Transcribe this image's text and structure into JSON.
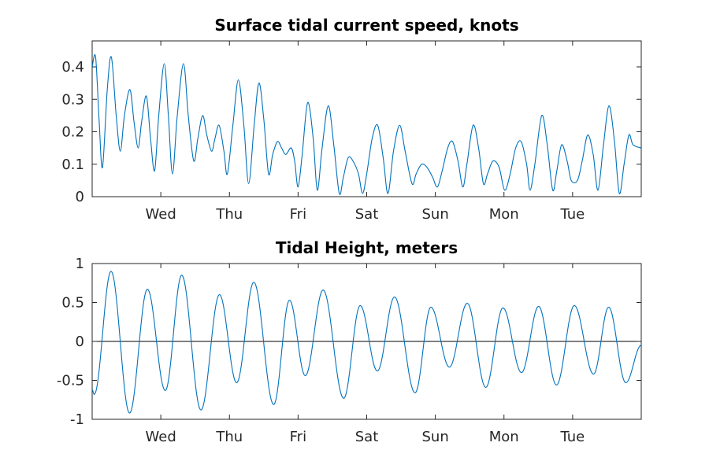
{
  "chart_data": [
    {
      "type": "line",
      "title": "Surface tidal current speed, knots",
      "x_tick_labels": [
        "Wed",
        "Thu",
        "Fri",
        "Sat",
        "Sun",
        "Mon",
        "Tue"
      ],
      "x_tick_positions_days": [
        1,
        2,
        3,
        4,
        5,
        6,
        7
      ],
      "xlim_days": [
        0,
        8
      ],
      "ylim": [
        0,
        0.48
      ],
      "y_ticks": [
        0,
        0.1,
        0.2,
        0.3,
        0.4
      ],
      "y_tick_labels": [
        "0",
        "0.1",
        "0.2",
        "0.3",
        "0.4"
      ],
      "grid": false,
      "series": [
        {
          "color": "#0072bd",
          "points_day_value": [
            [
              0.0,
              0.4
            ],
            [
              0.05,
              0.43
            ],
            [
              0.1,
              0.24
            ],
            [
              0.15,
              0.09
            ],
            [
              0.22,
              0.33
            ],
            [
              0.28,
              0.43
            ],
            [
              0.35,
              0.25
            ],
            [
              0.41,
              0.14
            ],
            [
              0.47,
              0.25
            ],
            [
              0.55,
              0.33
            ],
            [
              0.61,
              0.23
            ],
            [
              0.67,
              0.15
            ],
            [
              0.72,
              0.23
            ],
            [
              0.79,
              0.31
            ],
            [
              0.85,
              0.18
            ],
            [
              0.91,
              0.08
            ],
            [
              0.97,
              0.25
            ],
            [
              1.05,
              0.41
            ],
            [
              1.11,
              0.25
            ],
            [
              1.17,
              0.07
            ],
            [
              1.24,
              0.25
            ],
            [
              1.33,
              0.41
            ],
            [
              1.4,
              0.25
            ],
            [
              1.48,
              0.11
            ],
            [
              1.54,
              0.18
            ],
            [
              1.61,
              0.25
            ],
            [
              1.67,
              0.19
            ],
            [
              1.74,
              0.14
            ],
            [
              1.79,
              0.18
            ],
            [
              1.85,
              0.22
            ],
            [
              1.92,
              0.14
            ],
            [
              1.97,
              0.07
            ],
            [
              2.05,
              0.22
            ],
            [
              2.13,
              0.36
            ],
            [
              2.21,
              0.22
            ],
            [
              2.28,
              0.04
            ],
            [
              2.36,
              0.22
            ],
            [
              2.43,
              0.35
            ],
            [
              2.5,
              0.24
            ],
            [
              2.57,
              0.07
            ],
            [
              2.63,
              0.13
            ],
            [
              2.7,
              0.17
            ],
            [
              2.76,
              0.15
            ],
            [
              2.82,
              0.13
            ],
            [
              2.9,
              0.15
            ],
            [
              2.95,
              0.11
            ],
            [
              3.0,
              0.03
            ],
            [
              3.06,
              0.13
            ],
            [
              3.14,
              0.29
            ],
            [
              3.22,
              0.18
            ],
            [
              3.28,
              0.02
            ],
            [
              3.35,
              0.15
            ],
            [
              3.44,
              0.28
            ],
            [
              3.52,
              0.16
            ],
            [
              3.6,
              0.01
            ],
            [
              3.66,
              0.06
            ],
            [
              3.73,
              0.12
            ],
            [
              3.8,
              0.11
            ],
            [
              3.88,
              0.07
            ],
            [
              3.94,
              0.01
            ],
            [
              4.0,
              0.07
            ],
            [
              4.08,
              0.18
            ],
            [
              4.16,
              0.22
            ],
            [
              4.24,
              0.12
            ],
            [
              4.31,
              0.01
            ],
            [
              4.39,
              0.14
            ],
            [
              4.48,
              0.22
            ],
            [
              4.56,
              0.14
            ],
            [
              4.66,
              0.04
            ],
            [
              4.72,
              0.07
            ],
            [
              4.8,
              0.1
            ],
            [
              4.88,
              0.09
            ],
            [
              4.96,
              0.06
            ],
            [
              5.03,
              0.03
            ],
            [
              5.1,
              0.08
            ],
            [
              5.18,
              0.15
            ],
            [
              5.25,
              0.17
            ],
            [
              5.33,
              0.11
            ],
            [
              5.4,
              0.03
            ],
            [
              5.46,
              0.1
            ],
            [
              5.55,
              0.22
            ],
            [
              5.63,
              0.15
            ],
            [
              5.7,
              0.04
            ],
            [
              5.76,
              0.07
            ],
            [
              5.84,
              0.11
            ],
            [
              5.93,
              0.09
            ],
            [
              6.01,
              0.02
            ],
            [
              6.09,
              0.07
            ],
            [
              6.17,
              0.15
            ],
            [
              6.25,
              0.17
            ],
            [
              6.33,
              0.1
            ],
            [
              6.38,
              0.02
            ],
            [
              6.45,
              0.1
            ],
            [
              6.55,
              0.25
            ],
            [
              6.63,
              0.16
            ],
            [
              6.71,
              0.02
            ],
            [
              6.77,
              0.08
            ],
            [
              6.84,
              0.16
            ],
            [
              6.92,
              0.11
            ],
            [
              6.98,
              0.05
            ],
            [
              7.07,
              0.05
            ],
            [
              7.14,
              0.11
            ],
            [
              7.22,
              0.19
            ],
            [
              7.3,
              0.13
            ],
            [
              7.37,
              0.02
            ],
            [
              7.45,
              0.16
            ],
            [
              7.53,
              0.28
            ],
            [
              7.61,
              0.17
            ],
            [
              7.68,
              0.01
            ],
            [
              7.75,
              0.1
            ],
            [
              7.82,
              0.19
            ],
            [
              7.88,
              0.16
            ],
            [
              8.0,
              0.15
            ]
          ]
        }
      ]
    },
    {
      "type": "line",
      "title": "Tidal Height, meters",
      "x_tick_labels": [
        "Wed",
        "Thu",
        "Fri",
        "Sat",
        "Sun",
        "Mon",
        "Tue"
      ],
      "x_tick_positions_days": [
        1,
        2,
        3,
        4,
        5,
        6,
        7
      ],
      "xlim_days": [
        0,
        8
      ],
      "ylim": [
        -1,
        1
      ],
      "y_ticks": [
        -1,
        -0.5,
        0,
        0.5,
        1
      ],
      "y_tick_labels": [
        "-1",
        "-0.5",
        "0",
        "0.5",
        "1"
      ],
      "reference_line": 0,
      "grid": false,
      "series": [
        {
          "color": "#0072bd",
          "extrema_day_value": [
            [
              0.0,
              -0.62
            ],
            [
              0.03,
              -0.68
            ],
            [
              0.275,
              0.9
            ],
            [
              0.545,
              -0.92
            ],
            [
              0.805,
              0.67
            ],
            [
              1.065,
              -0.63
            ],
            [
              1.305,
              0.85
            ],
            [
              1.585,
              -0.88
            ],
            [
              1.855,
              0.6
            ],
            [
              2.105,
              -0.53
            ],
            [
              2.355,
              0.76
            ],
            [
              2.645,
              -0.81
            ],
            [
              2.875,
              0.53
            ],
            [
              3.105,
              -0.44
            ],
            [
              3.365,
              0.66
            ],
            [
              3.665,
              -0.73
            ],
            [
              3.905,
              0.46
            ],
            [
              4.155,
              -0.38
            ],
            [
              4.405,
              0.57
            ],
            [
              4.705,
              -0.66
            ],
            [
              4.935,
              0.44
            ],
            [
              5.205,
              -0.33
            ],
            [
              5.465,
              0.49
            ],
            [
              5.735,
              -0.59
            ],
            [
              5.985,
              0.43
            ],
            [
              6.255,
              -0.4
            ],
            [
              6.505,
              0.45
            ],
            [
              6.765,
              -0.56
            ],
            [
              7.025,
              0.46
            ],
            [
              7.305,
              -0.42
            ],
            [
              7.525,
              0.44
            ],
            [
              7.775,
              -0.53
            ],
            [
              8.0,
              -0.05
            ]
          ]
        }
      ]
    }
  ]
}
